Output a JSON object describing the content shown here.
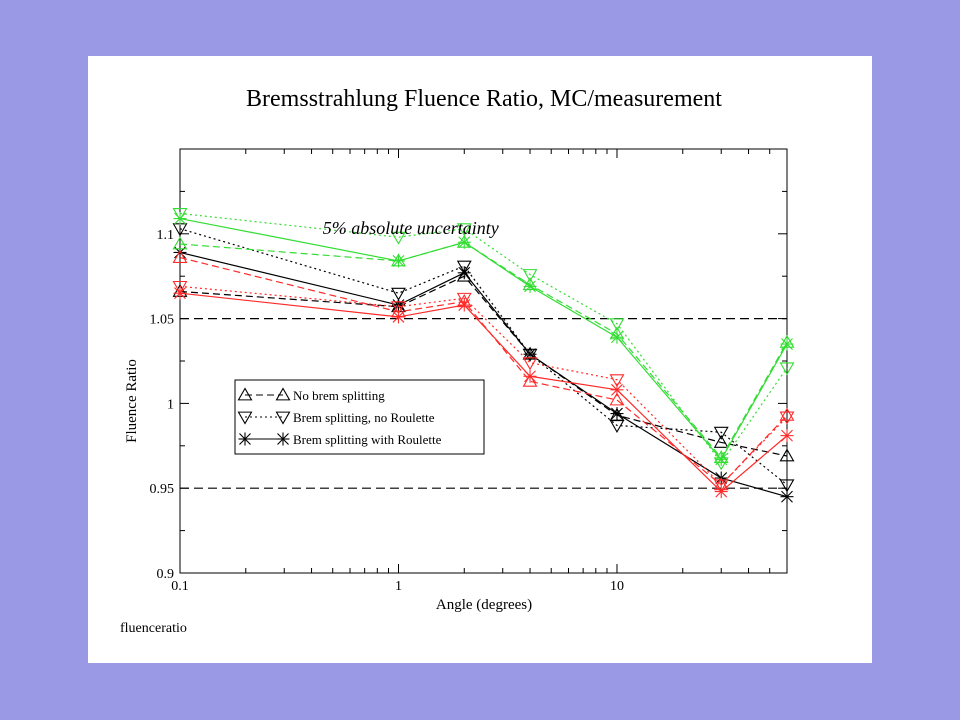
{
  "page": {
    "background": "#9999e6",
    "panel_background": "#ffffff"
  },
  "footer": {
    "text": "fluenceratio"
  },
  "colors": {
    "black": "#000000",
    "red": "#ff2a2a",
    "green": "#33dd33"
  },
  "chart_data": {
    "type": "line",
    "title": "Bremsstrahlung Fluence Ratio, MC/measurement",
    "xlabel": "Angle (degrees)",
    "ylabel": "Fluence Ratio",
    "xscale": "log",
    "xlim": [
      0.1,
      60
    ],
    "ylim": [
      0.9,
      1.15
    ],
    "xticks": [
      {
        "value": 0.1,
        "label": "0.1"
      },
      {
        "value": 1,
        "label": "1"
      },
      {
        "value": 10,
        "label": "10"
      }
    ],
    "yticks": [
      {
        "value": 0.9,
        "label": "0.9"
      },
      {
        "value": 0.95,
        "label": "0.95"
      },
      {
        "value": 1,
        "label": "1"
      },
      {
        "value": 1.05,
        "label": "1.05"
      },
      {
        "value": 1.1,
        "label": "1.1"
      }
    ],
    "reference_lines": [
      1.05,
      0.95
    ],
    "annotation": {
      "text": "5% absolute uncertainty",
      "x": 0.45,
      "y": 1.1
    },
    "legend_position": "lower-left",
    "legend": [
      {
        "label": "No brem splitting",
        "marker": "triangle-up",
        "dash": "dashed"
      },
      {
        "label": "Brem splitting, no Roulette",
        "marker": "triangle-down",
        "dash": "dotted"
      },
      {
        "label": "Brem splitting with Roulette",
        "marker": "asterisk",
        "dash": "solid"
      }
    ],
    "x": [
      0.1,
      1,
      2,
      4,
      10,
      30,
      60
    ],
    "series": [
      {
        "color": "black",
        "marker": "triangle-up",
        "dash": "dashed",
        "values": [
          1.066,
          1.057,
          1.075,
          1.029,
          0.993,
          0.977,
          0.969
        ]
      },
      {
        "color": "black",
        "marker": "triangle-down",
        "dash": "dotted",
        "values": [
          1.103,
          1.065,
          1.081,
          1.029,
          0.987,
          0.983,
          0.952
        ]
      },
      {
        "color": "black",
        "marker": "asterisk",
        "dash": "solid",
        "values": [
          1.089,
          1.058,
          1.077,
          1.029,
          0.994,
          0.956,
          0.945
        ]
      },
      {
        "color": "red",
        "marker": "triangle-up",
        "dash": "dashed",
        "values": [
          1.086,
          1.054,
          1.06,
          1.013,
          1.002,
          0.952,
          0.993
        ]
      },
      {
        "color": "red",
        "marker": "triangle-down",
        "dash": "dotted",
        "values": [
          1.069,
          1.057,
          1.062,
          1.024,
          1.014,
          0.952,
          0.992
        ]
      },
      {
        "color": "red",
        "marker": "asterisk",
        "dash": "solid",
        "values": [
          1.065,
          1.051,
          1.058,
          1.016,
          1.008,
          0.948,
          0.981
        ]
      },
      {
        "color": "green",
        "marker": "triangle-up",
        "dash": "dashed",
        "values": [
          1.094,
          1.084,
          1.095,
          1.07,
          1.041,
          0.968,
          1.036
        ]
      },
      {
        "color": "green",
        "marker": "triangle-down",
        "dash": "dotted",
        "values": [
          1.112,
          1.098,
          1.103,
          1.076,
          1.047,
          0.965,
          1.021
        ]
      },
      {
        "color": "green",
        "marker": "asterisk",
        "dash": "solid",
        "values": [
          1.109,
          1.084,
          1.095,
          1.069,
          1.039,
          0.967,
          1.035
        ]
      }
    ]
  }
}
